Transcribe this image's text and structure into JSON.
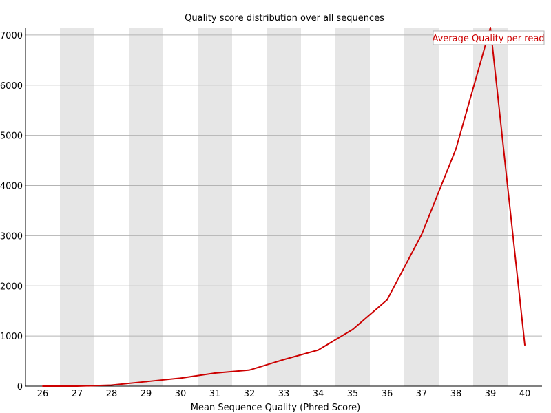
{
  "chart_data": {
    "type": "line",
    "title": "Quality score distribution over all sequences",
    "xlabel": "Mean Sequence Quality (Phred Score)",
    "ylabel": "",
    "x": [
      26,
      27,
      28,
      29,
      30,
      31,
      32,
      33,
      34,
      35,
      36,
      37,
      38,
      39,
      40
    ],
    "series": [
      {
        "name": "Average Quality per read",
        "color": "#cc0000",
        "values": [
          0,
          0,
          20,
          90,
          160,
          260,
          320,
          530,
          720,
          1130,
          1720,
          3020,
          4730,
          7150,
          820
        ]
      }
    ],
    "xlim": [
      26,
      40
    ],
    "ylim": [
      0,
      7150
    ],
    "yticks": [
      0,
      1000,
      2000,
      3000,
      4000,
      5000,
      6000,
      7000
    ],
    "grid": true,
    "legend": "top-right",
    "colors": {
      "band": "#e6e6e6",
      "gridline": "#b3b3b3",
      "axis": "#000000"
    }
  }
}
